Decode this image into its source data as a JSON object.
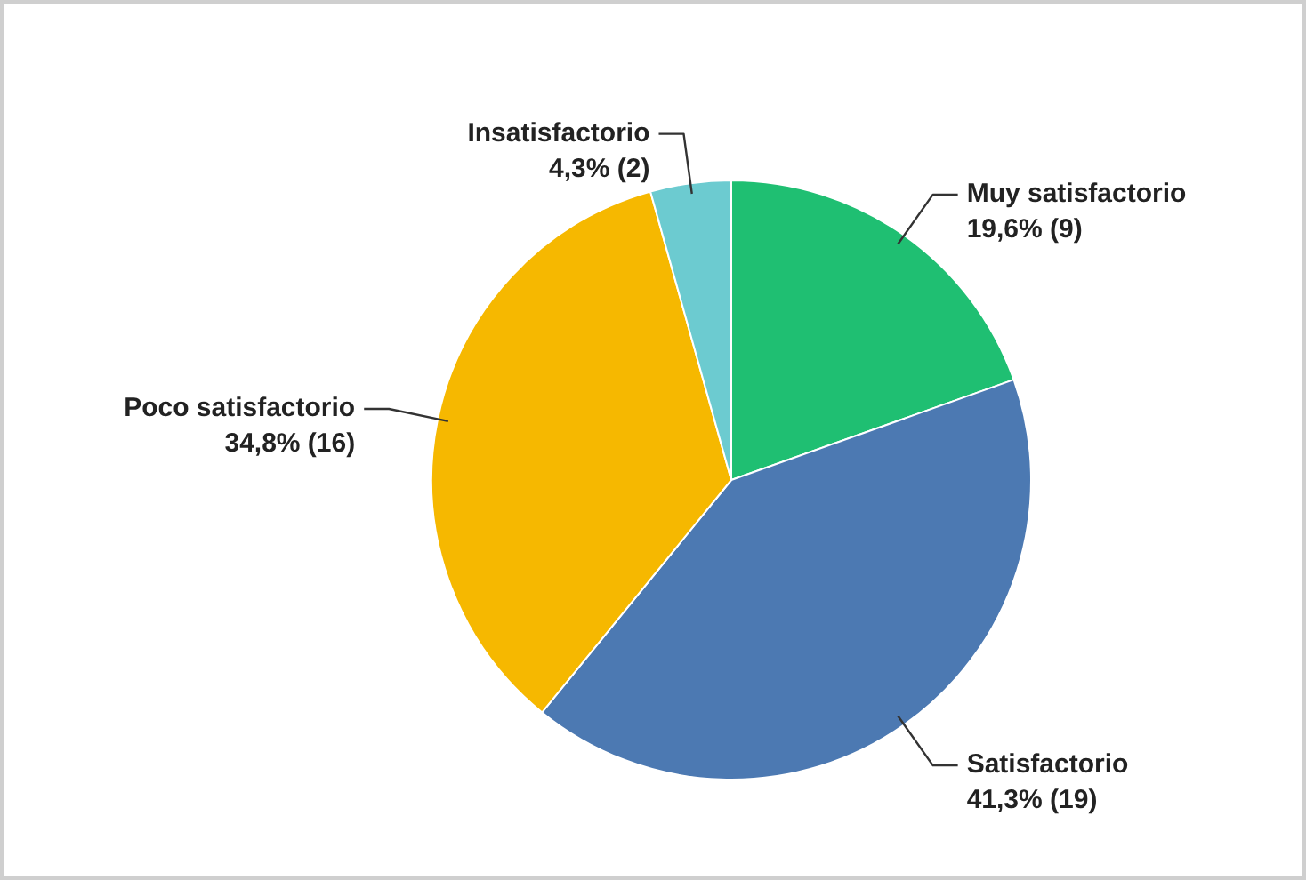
{
  "chart_data": {
    "type": "pie",
    "categories": [
      "Muy satisfactorio",
      "Satisfactorio",
      "Poco satisfactorio",
      "Insatisfactorio"
    ],
    "values": [
      9,
      19,
      16,
      2
    ],
    "value_labels": [
      "19,6% (9)",
      "41,3% (19)",
      "34,8% (16)",
      "4,3% (2)"
    ],
    "colors": [
      "#1fbf72",
      "#4c79b2",
      "#f6b800",
      "#6ccbd0"
    ],
    "legend": false
  }
}
